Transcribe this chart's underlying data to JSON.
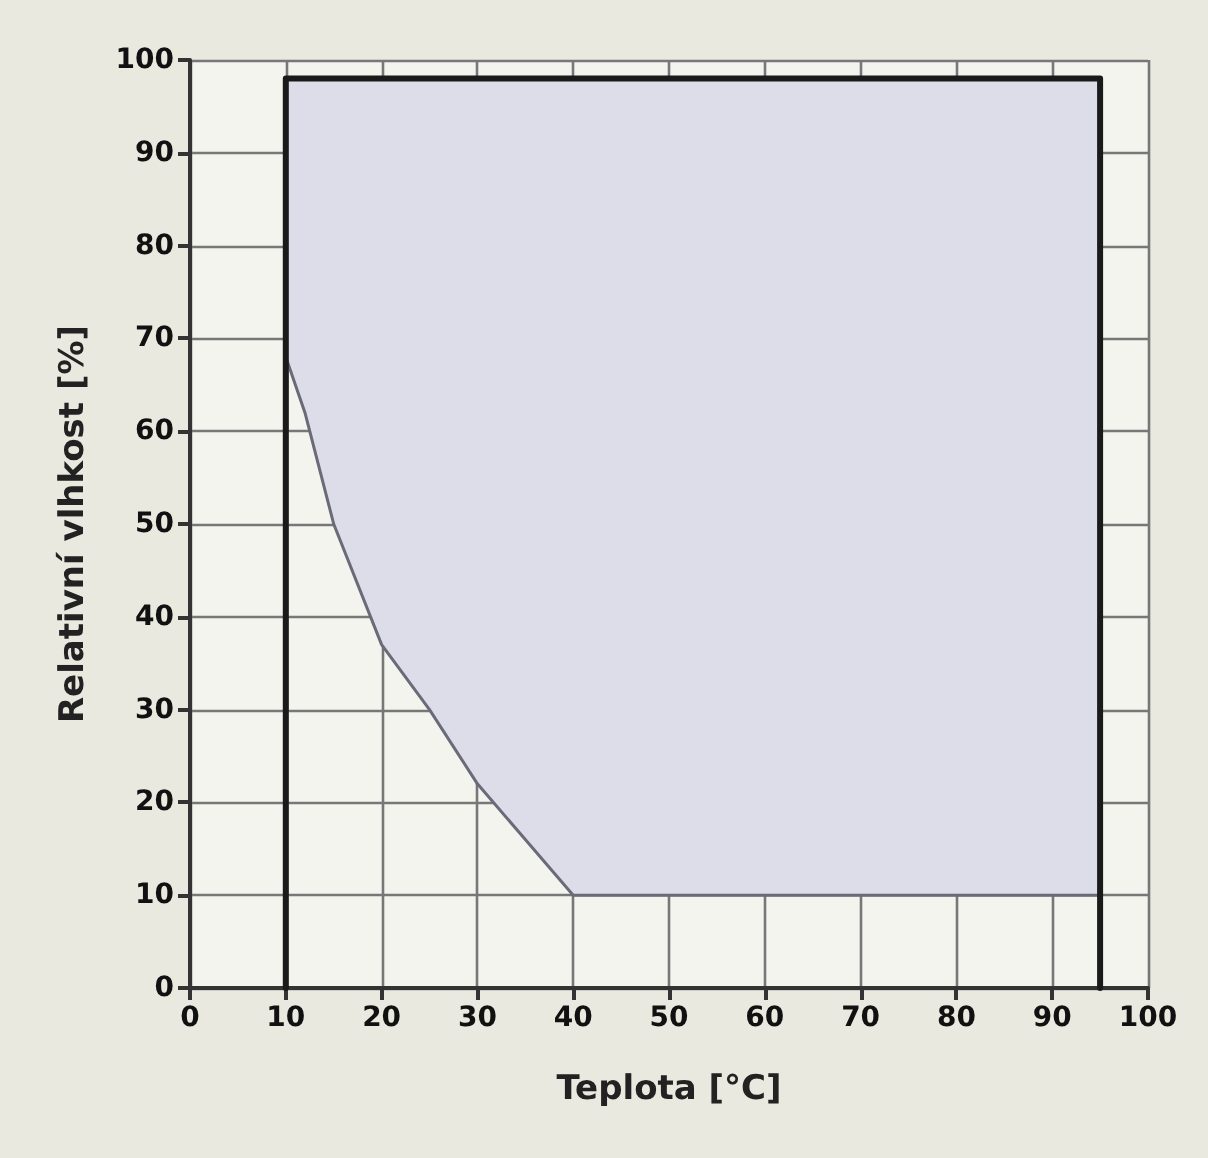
{
  "chart_data": {
    "type": "line",
    "xlabel": "Teplota [°C]",
    "ylabel": "Relativní vlhkost [%]",
    "xlim": [
      0,
      100
    ],
    "xticks": [
      0,
      10,
      20,
      30,
      40,
      50,
      60,
      70,
      80,
      90,
      100
    ],
    "ylim": [
      0,
      100
    ],
    "yticks": [
      0,
      10,
      20,
      30,
      40,
      50,
      60,
      70,
      80,
      90,
      100
    ],
    "grid": true,
    "marker": "none",
    "line_style": "solid",
    "series": [
      {
        "color": "#6a6a78",
        "x": [
          10,
          12,
          15,
          20,
          25,
          30,
          35,
          40,
          95
        ],
        "values": [
          68,
          62,
          50,
          37,
          30,
          22,
          16,
          10,
          10
        ],
        "lower": [
          68,
          62,
          50,
          37,
          30,
          22,
          16,
          10,
          10
        ],
        "upper": [
          98,
          98,
          98,
          98,
          98,
          98,
          98,
          98,
          98
        ]
      },
      {
        "color": "#1a1a1a",
        "x": [
          10,
          10,
          95,
          95
        ],
        "values": [
          0,
          98,
          98,
          0
        ]
      }
    ]
  }
}
